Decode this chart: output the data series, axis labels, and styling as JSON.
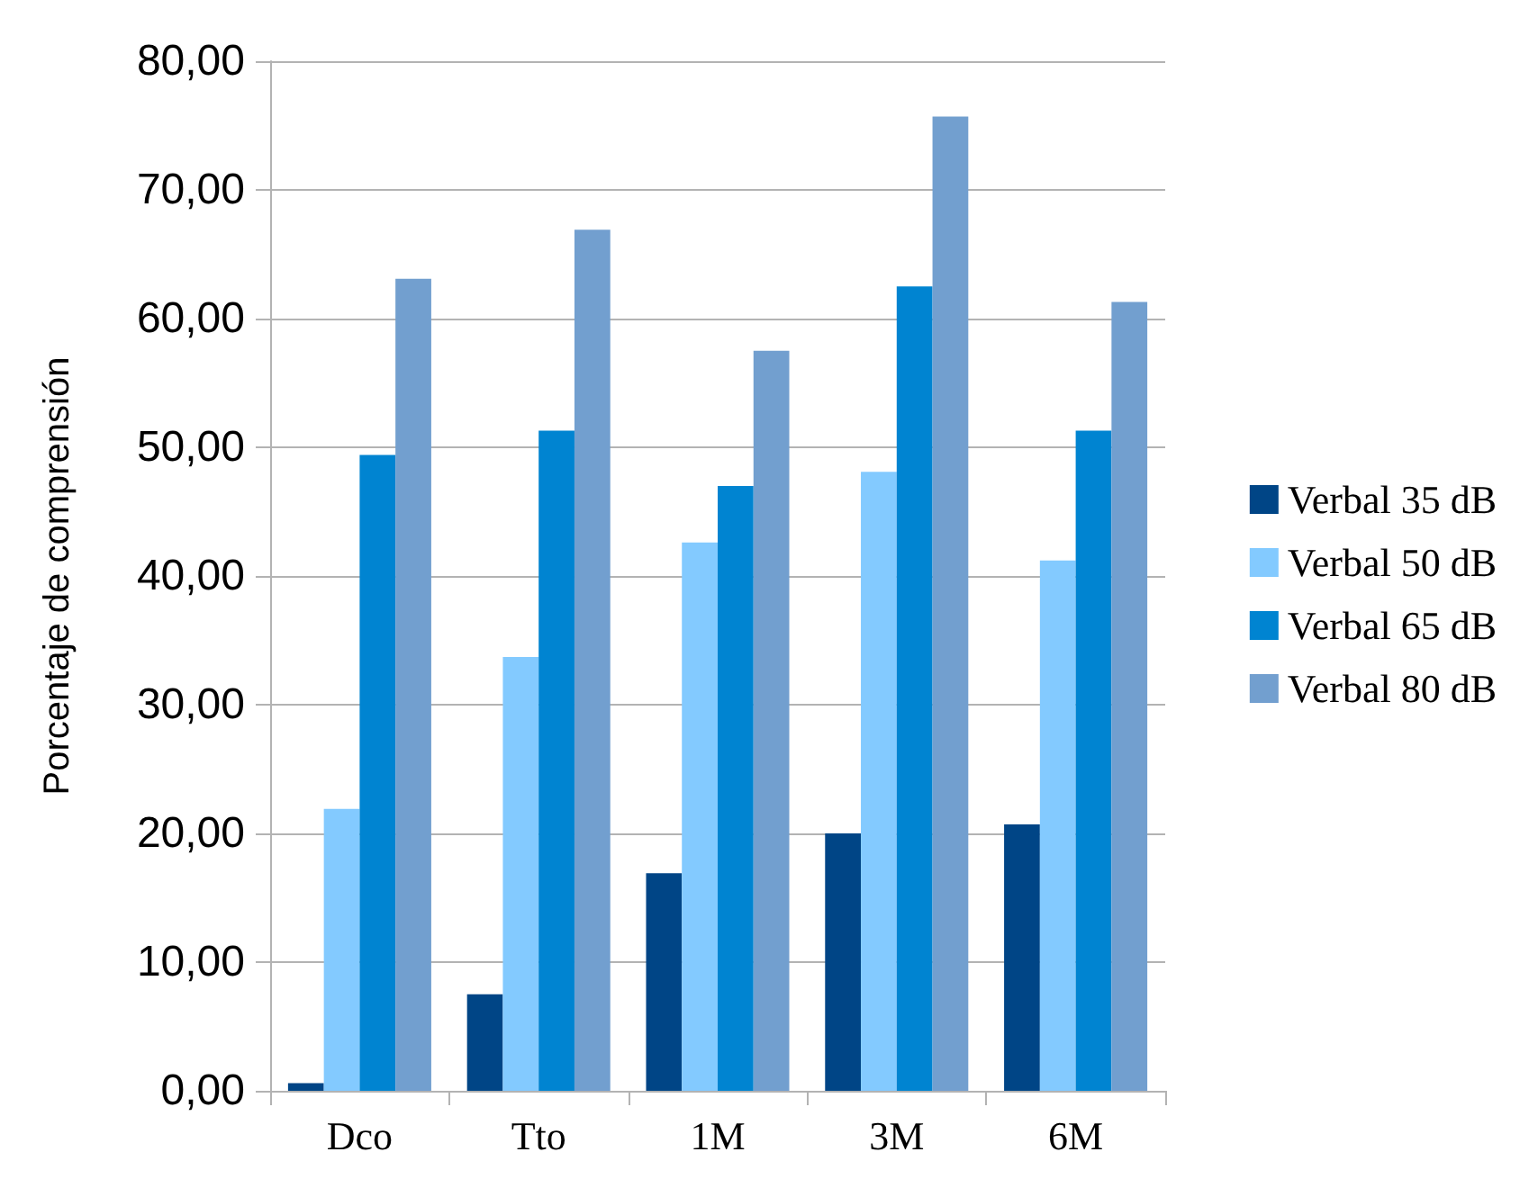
{
  "chart_data": {
    "type": "bar",
    "ylabel": "Porcentaje de comprensión",
    "categories": [
      "Dco",
      "Tto",
      "1M",
      "3M",
      "6M"
    ],
    "series": [
      {
        "name": "Verbal 35 dB",
        "color": "#004586",
        "values": [
          0.6,
          7.5,
          16.9,
          20.0,
          20.7
        ]
      },
      {
        "name": "Verbal 50 dB",
        "color": "#83caff",
        "values": [
          21.9,
          33.7,
          42.6,
          48.1,
          41.2
        ]
      },
      {
        "name": "Verbal 65 dB",
        "color": "#0084d1",
        "values": [
          49.4,
          51.3,
          47.0,
          62.5,
          51.3
        ]
      },
      {
        "name": "Verbal 80 dB",
        "color": "#729fcf",
        "values": [
          63.1,
          66.9,
          57.5,
          75.7,
          61.3
        ]
      }
    ],
    "ylim": [
      0,
      80
    ],
    "yticks": [
      {
        "value": 0,
        "label": "0,00"
      },
      {
        "value": 10,
        "label": "10,00"
      },
      {
        "value": 20,
        "label": "20,00"
      },
      {
        "value": 30,
        "label": "30,00"
      },
      {
        "value": 40,
        "label": "40,00"
      },
      {
        "value": 50,
        "label": "50,00"
      },
      {
        "value": 60,
        "label": "60,00"
      },
      {
        "value": 70,
        "label": "70,00"
      },
      {
        "value": 80,
        "label": "80,00"
      }
    ],
    "grid": "y",
    "legend": "right"
  }
}
